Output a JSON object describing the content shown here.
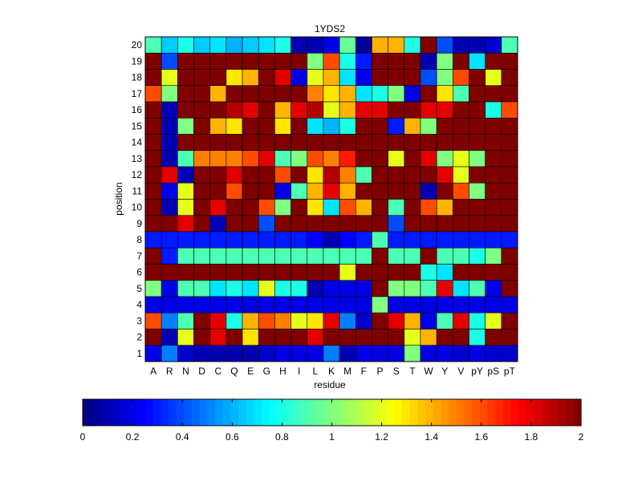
{
  "chart_data": {
    "type": "heatmap",
    "title": "1YDS2",
    "xlabel": "residue",
    "ylabel": "position",
    "x_categories": [
      "A",
      "R",
      "N",
      "D",
      "C",
      "Q",
      "E",
      "G",
      "H",
      "I",
      "L",
      "K",
      "M",
      "F",
      "P",
      "S",
      "T",
      "W",
      "Y",
      "V",
      "pY",
      "pS",
      "pT"
    ],
    "y_categories": [
      "1",
      "2",
      "3",
      "4",
      "5",
      "6",
      "7",
      "8",
      "9",
      "10",
      "11",
      "12",
      "13",
      "14",
      "15",
      "16",
      "17",
      "18",
      "19",
      "20"
    ],
    "rows_top_to_bottom": [
      "20",
      "19",
      "18",
      "17",
      "16",
      "15",
      "14",
      "13",
      "12",
      "11",
      "10",
      "9",
      "8",
      "7",
      "6",
      "5",
      "4",
      "3",
      "2",
      "1"
    ],
    "values": [
      [
        0.9,
        0.65,
        0.8,
        0.65,
        0.7,
        0.6,
        0.65,
        0.7,
        0.8,
        0.1,
        0.1,
        0.2,
        0.95,
        0.05,
        1.4,
        1.4,
        0.8,
        2.0,
        0.4,
        0.1,
        0.1,
        0.15,
        0.9
      ],
      [
        2.0,
        0.4,
        2.0,
        2.0,
        2.0,
        2.0,
        2.0,
        2.0,
        2.0,
        2.0,
        1.0,
        1.6,
        0.8,
        0.3,
        2.0,
        2.0,
        2.0,
        0.1,
        1.0,
        2.0,
        0.7,
        2.0,
        2.0
      ],
      [
        2.0,
        1.2,
        2.0,
        2.0,
        2.0,
        1.3,
        1.4,
        2.0,
        1.8,
        0.2,
        1.2,
        1.4,
        0.7,
        0.2,
        2.0,
        2.0,
        2.0,
        0.4,
        1.0,
        1.6,
        2.0,
        1.2,
        2.0
      ],
      [
        1.6,
        1.0,
        2.0,
        2.0,
        1.4,
        2.0,
        2.0,
        2.0,
        2.0,
        2.0,
        1.5,
        1.3,
        1.4,
        0.7,
        0.8,
        1.0,
        0.2,
        2.0,
        1.3,
        0.9,
        2.0,
        2.0,
        2.0
      ],
      [
        2.0,
        0.1,
        2.0,
        2.0,
        2.0,
        1.9,
        1.8,
        2.0,
        1.4,
        1.8,
        1.9,
        1.2,
        1.4,
        1.8,
        1.8,
        2.0,
        2.0,
        1.8,
        1.8,
        2.0,
        2.0,
        0.8,
        1.6
      ],
      [
        2.0,
        0.1,
        1.0,
        2.0,
        1.4,
        1.3,
        2.0,
        2.0,
        1.3,
        2.0,
        0.7,
        0.6,
        0.8,
        2.0,
        2.0,
        0.3,
        1.4,
        1.0,
        2.0,
        2.0,
        2.0,
        2.0,
        2.0
      ],
      [
        2.0,
        0.1,
        2.0,
        2.0,
        2.0,
        2.0,
        2.0,
        2.0,
        2.0,
        2.0,
        2.0,
        2.0,
        2.0,
        2.0,
        2.0,
        2.0,
        2.0,
        2.0,
        2.0,
        2.0,
        2.0,
        2.0,
        2.0
      ],
      [
        2.0,
        0.1,
        0.9,
        1.5,
        1.5,
        1.5,
        1.6,
        1.8,
        0.9,
        1.0,
        1.6,
        1.5,
        1.7,
        2.0,
        2.0,
        1.2,
        2.0,
        1.8,
        1.0,
        1.2,
        1.0,
        2.0,
        2.0
      ],
      [
        2.0,
        1.8,
        0.1,
        2.0,
        2.0,
        1.8,
        2.0,
        2.0,
        1.6,
        2.0,
        1.3,
        1.9,
        1.5,
        0.9,
        2.0,
        2.0,
        2.0,
        2.0,
        1.8,
        1.2,
        2.0,
        2.0,
        2.0
      ],
      [
        2.0,
        0.2,
        1.2,
        2.0,
        2.0,
        1.6,
        2.0,
        2.0,
        0.2,
        0.9,
        1.4,
        1.8,
        1.4,
        2.0,
        2.0,
        2.0,
        2.0,
        0.1,
        2.0,
        1.6,
        1.0,
        2.0,
        2.0
      ],
      [
        2.0,
        0.1,
        1.2,
        2.0,
        1.8,
        2.0,
        2.0,
        1.6,
        1.0,
        2.0,
        1.3,
        0.7,
        1.6,
        1.4,
        2.0,
        0.9,
        2.0,
        1.6,
        1.4,
        2.0,
        2.0,
        2.0,
        2.0
      ],
      [
        2.0,
        2.0,
        1.8,
        2.0,
        0.1,
        2.0,
        2.0,
        0.4,
        2.0,
        2.0,
        2.0,
        2.0,
        2.0,
        2.0,
        2.0,
        0.4,
        2.0,
        2.0,
        2.0,
        2.0,
        2.0,
        2.0,
        2.0
      ],
      [
        0.3,
        0.3,
        0.3,
        0.3,
        0.3,
        0.3,
        0.3,
        0.3,
        0.3,
        0.3,
        0.25,
        0.1,
        0.25,
        0.3,
        0.9,
        0.3,
        0.3,
        0.3,
        0.3,
        0.3,
        0.3,
        0.3,
        0.3
      ],
      [
        2.0,
        0.3,
        0.9,
        0.9,
        0.9,
        0.9,
        0.9,
        0.9,
        0.9,
        0.9,
        0.9,
        0.9,
        0.9,
        0.9,
        2.0,
        0.9,
        0.9,
        2.0,
        0.9,
        0.9,
        0.8,
        1.0,
        2.0
      ],
      [
        2.0,
        2.0,
        2.0,
        2.0,
        2.0,
        2.0,
        2.0,
        2.0,
        2.0,
        2.0,
        2.0,
        2.0,
        1.2,
        2.0,
        2.0,
        2.0,
        2.0,
        0.8,
        0.7,
        2.0,
        2.0,
        2.0,
        2.0
      ],
      [
        1.0,
        0.2,
        0.9,
        0.9,
        0.7,
        0.8,
        0.7,
        1.2,
        0.8,
        0.8,
        0.1,
        0.2,
        0.2,
        0.2,
        2.0,
        1.0,
        1.0,
        0.9,
        1.8,
        0.7,
        0.9,
        0.2,
        2.0
      ],
      [
        0.2,
        0.2,
        0.2,
        0.2,
        0.2,
        0.2,
        0.2,
        0.2,
        0.2,
        0.2,
        0.2,
        0.2,
        0.2,
        0.2,
        1.0,
        0.2,
        0.2,
        0.2,
        0.2,
        0.2,
        0.2,
        0.2,
        0.2
      ],
      [
        1.6,
        0.5,
        0.9,
        2.0,
        1.8,
        0.8,
        1.4,
        1.6,
        1.5,
        1.2,
        1.3,
        1.8,
        0.5,
        0.15,
        2.0,
        1.8,
        1.4,
        0.2,
        0.9,
        1.8,
        0.8,
        1.2,
        2.0
      ],
      [
        2.0,
        0.1,
        1.2,
        2.0,
        1.8,
        2.0,
        1.3,
        2.0,
        2.0,
        2.0,
        1.8,
        2.0,
        2.0,
        2.0,
        2.0,
        2.0,
        1.2,
        1.4,
        2.0,
        2.0,
        0.8,
        2.0,
        2.0
      ],
      [
        0.2,
        0.5,
        0.15,
        0.1,
        0.1,
        0.1,
        0.1,
        0.15,
        0.2,
        0.2,
        0.2,
        0.5,
        0.1,
        0.2,
        0.2,
        0.2,
        1.0,
        0.2,
        0.2,
        0.15,
        0.2,
        0.15,
        0.15
      ]
    ],
    "colorbar": {
      "range": [
        0,
        2
      ],
      "ticks": [
        "0",
        "0.2",
        "0.4",
        "0.6",
        "0.8",
        "1",
        "1.2",
        "1.4",
        "1.6",
        "1.8",
        "2"
      ],
      "colormap": "jet"
    }
  }
}
